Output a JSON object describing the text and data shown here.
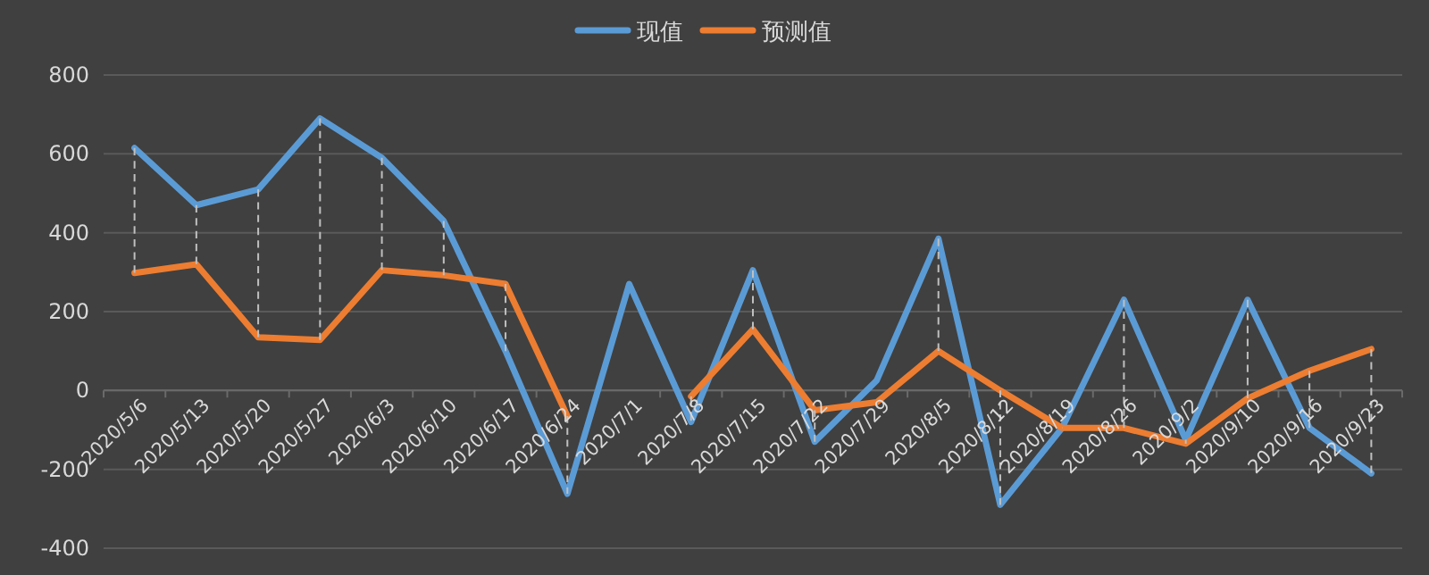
{
  "chart_data": {
    "type": "line",
    "categories": [
      "2020/5/6",
      "2020/5/13",
      "2020/5/20",
      "2020/5/27",
      "2020/6/3",
      "2020/6/10",
      "2020/6/17",
      "2020/6/24",
      "2020/7/1",
      "2020/7/8",
      "2020/7/15",
      "2020/7/22",
      "2020/7/29",
      "2020/8/5",
      "2020/8/12",
      "2020/8/19",
      "2020/8/26",
      "2020/9/2",
      "2020/9/10",
      "2020/9/16",
      "2020/9/23"
    ],
    "series": [
      {
        "name": "现值",
        "color": "#5b9bd5",
        "values": [
          615,
          470,
          510,
          690,
          590,
          430,
          100,
          -262,
          270,
          -80,
          305,
          -130,
          25,
          385,
          -290,
          -95,
          230,
          -125,
          230,
          -95,
          -210
        ]
      },
      {
        "name": "预测值",
        "color": "#ed7d31",
        "values": [
          298,
          320,
          135,
          128,
          305,
          292,
          270,
          -65,
          null,
          -15,
          155,
          -50,
          -30,
          100,
          0,
          -95,
          -95,
          -135,
          -20,
          50,
          105
        ],
        "errors": [
          [
            298,
            615
          ],
          [
            320,
            470
          ],
          [
            135,
            510
          ],
          [
            128,
            690
          ],
          [
            305,
            590
          ],
          [
            292,
            430
          ],
          [
            100,
            270
          ],
          [
            -262,
            -65
          ],
          null,
          [
            -80,
            -15
          ],
          [
            155,
            305
          ],
          [
            -130,
            -50
          ],
          null,
          [
            100,
            385
          ],
          [
            -290,
            0
          ],
          [
            -95,
            -95
          ],
          [
            -95,
            230
          ],
          [
            -135,
            -125
          ],
          [
            -20,
            230
          ],
          [
            -95,
            50
          ],
          [
            -210,
            105
          ]
        ]
      }
    ],
    "ylim": [
      -400,
      800
    ],
    "yticks": [
      -400,
      -200,
      0,
      200,
      400,
      600,
      800
    ],
    "grid": "y",
    "legend": "top",
    "marker": "none",
    "line_style": "solid"
  }
}
